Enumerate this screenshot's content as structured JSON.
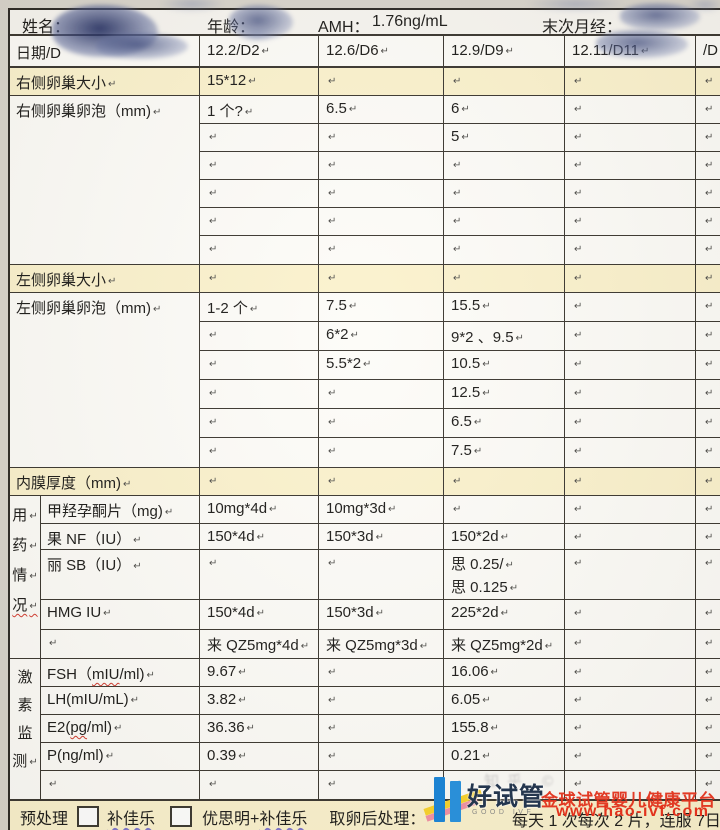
{
  "pilcrow": "↵",
  "colors": {
    "highlight": "#fbf2cd",
    "logo_blue": "#1d83d2",
    "watermark_red": "#e2321c",
    "scribble_blue": "#5a6899"
  },
  "header": {
    "name_label": "姓名：",
    "age_label": "年龄：",
    "amh_label": "AMH：",
    "amh_value": "1.76ng/mL",
    "lmp_label": "末次月经："
  },
  "date_row": {
    "label": "日期/D",
    "cells": [
      "12.2/D2",
      "12.6/D6",
      "12.9/D9",
      "12.11/D11",
      "/D"
    ]
  },
  "sections": {
    "right_ovary_size": {
      "label": "右侧卵巢大小",
      "cells": [
        "15*12",
        "",
        "",
        "",
        ""
      ]
    },
    "right_follicles": {
      "label": "右侧卵巢卵泡（mm)",
      "grid": [
        [
          "1 个?",
          "6.5",
          "6",
          "",
          ""
        ],
        [
          "",
          "",
          "5",
          "",
          ""
        ],
        [
          "",
          "",
          "",
          "",
          ""
        ],
        [
          "",
          "",
          "",
          "",
          ""
        ],
        [
          "",
          "",
          "",
          "",
          ""
        ],
        [
          "",
          "",
          "",
          "",
          ""
        ]
      ]
    },
    "left_ovary_size": {
      "label": "左侧卵巢大小",
      "cells": [
        "",
        "",
        "",
        "",
        ""
      ]
    },
    "left_follicles": {
      "label": "左侧卵巢卵泡（mm)",
      "grid": [
        [
          "1-2 个",
          "7.5",
          "15.5",
          "",
          ""
        ],
        [
          "",
          "6*2",
          "9*2 、9.5",
          "",
          ""
        ],
        [
          "",
          "5.5*2",
          "10.5",
          "",
          ""
        ],
        [
          "",
          "",
          "12.5",
          "",
          ""
        ],
        [
          "",
          "",
          "6.5",
          "",
          ""
        ],
        [
          "",
          "",
          "7.5",
          "",
          ""
        ]
      ]
    },
    "endometrium": {
      "label": "内膜厚度（mm)",
      "cells": [
        "",
        "",
        "",
        "",
        ""
      ]
    },
    "medication": {
      "vertical_label": "用药情况",
      "rows": [
        {
          "label": "甲羟孕酮片（mg)",
          "values": [
            "10mg*4d",
            "10mg*3d",
            "",
            "",
            ""
          ]
        },
        {
          "label": "果 NF（IU）",
          "values": [
            "150*4d",
            "150*3d",
            "150*2d",
            "",
            ""
          ]
        },
        {
          "label": "丽 SB（IU）",
          "values": [
            "",
            "",
            "思 0.25/\n思 0.125",
            "",
            ""
          ]
        },
        {
          "label": "HMG IU",
          "values": [
            "150*4d",
            "150*3d",
            "225*2d",
            "",
            ""
          ]
        },
        {
          "label": "",
          "values": [
            "来 QZ5mg*4d",
            "来 QZ5mg*3d",
            "来 QZ5mg*2d",
            "",
            ""
          ]
        }
      ]
    },
    "hormones": {
      "vertical_label": "激素监测",
      "rows": [
        {
          "label": "FSH（mIU/ml)",
          "wavy": "mIU",
          "values": [
            "9.67",
            "",
            "16.06",
            "",
            ""
          ]
        },
        {
          "label": "LH(mIU/mL)",
          "values": [
            "3.82",
            "",
            "6.05",
            "",
            ""
          ]
        },
        {
          "label": "E2(pg/ml)",
          "wavy": "pg",
          "values": [
            "36.36",
            "",
            "155.8",
            "",
            ""
          ]
        },
        {
          "label": "P(ng/ml)",
          "values": [
            "0.39",
            "",
            "0.21",
            "",
            ""
          ]
        },
        {
          "label": "",
          "values": [
            "",
            "",
            "",
            "",
            ""
          ]
        }
      ]
    }
  },
  "footer": {
    "pretreatment_label": "预处理",
    "option1": "补佳乐",
    "option2_prefix": "优思明+",
    "option2_wavy": "补佳乐",
    "post_label": "取卵后处理：",
    "post_text": "每天 1 次每次 2 片，连服 7日",
    "logo": {
      "text": "好试管",
      "subtext": "GOOD IVF"
    },
    "watermark": {
      "line1": "金球试管婴儿健康平台",
      "line2": "www.hao-ivf.com",
      "ghost": "知乎 ©"
    }
  }
}
